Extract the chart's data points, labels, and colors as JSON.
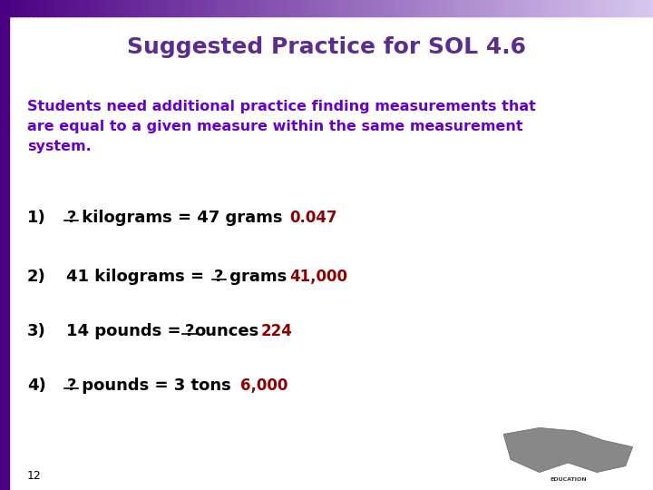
{
  "title": "Suggested Practice for SOL 4.6",
  "title_color": "#5B2D8E",
  "title_fontsize": 18,
  "bg_color": "#FFFFFF",
  "border_left_color": "#4B0082",
  "border_top_color": "#5B2D8E",
  "subtitle_lines": [
    "Students need additional practice finding measurements that",
    "are equal to a given measure within the same measurement",
    "system."
  ],
  "subtitle_color": "#6600CC",
  "subtitle_fontsize": 11.5,
  "questions": [
    {
      "number": "1)",
      "before_q": "",
      "after_q": " kilograms = 47 grams",
      "answer": "0.047",
      "answer_color": "#8B0000"
    },
    {
      "number": "2)",
      "before_q": "41 kilograms = ",
      "after_q": " grams",
      "answer": "41,000",
      "answer_color": "#8B0000"
    },
    {
      "number": "3)",
      "before_q": "14 pounds = ",
      "after_q": "ounces",
      "answer": "224",
      "answer_color": "#8B0000"
    },
    {
      "number": "4)",
      "before_q": "",
      "after_q": " pounds = 3 tons",
      "answer": "6,000",
      "answer_color": "#8B0000"
    }
  ],
  "q_fontsize": 13,
  "footer_number": "12",
  "footer_color": "#000000"
}
